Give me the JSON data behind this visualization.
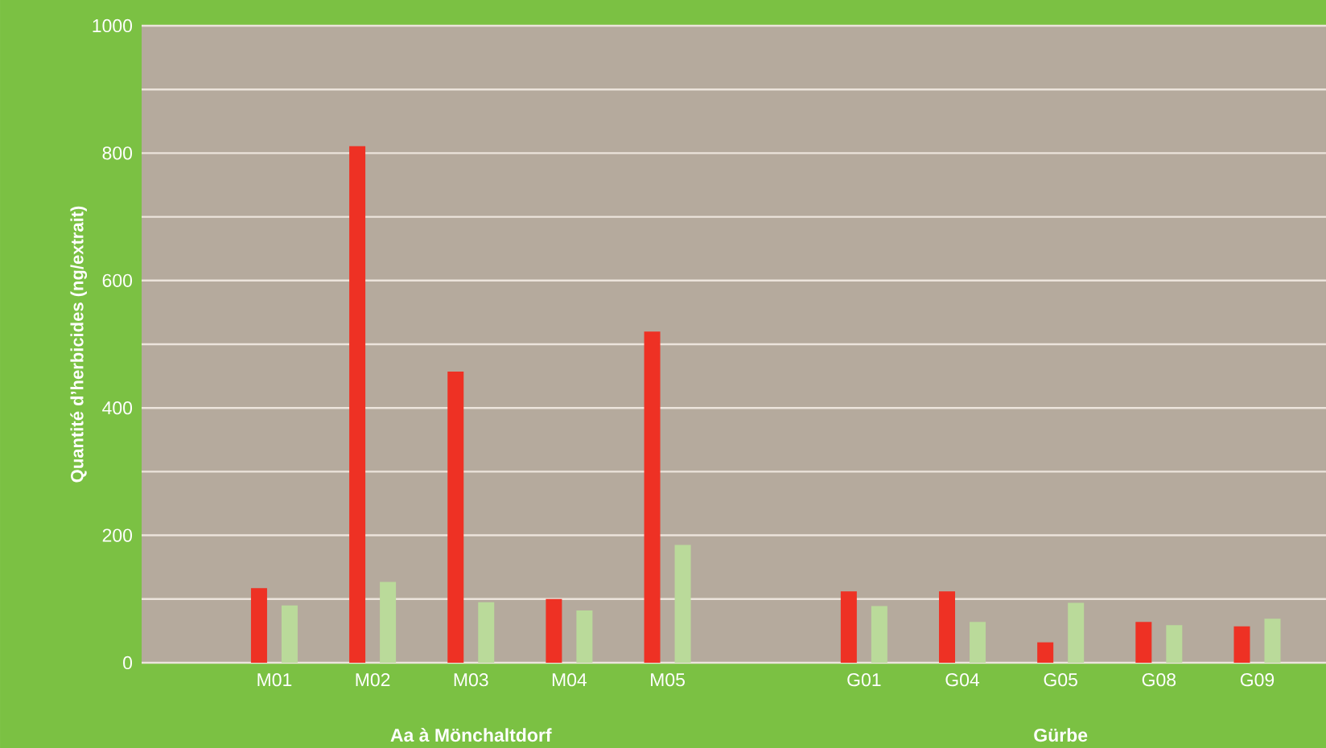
{
  "chart_data": {
    "type": "bar",
    "ylabel": "Quantité d’herbicides (ng/extrait)",
    "categories": [
      "M01",
      "M02",
      "M03",
      "M04",
      "M05",
      null,
      "G01",
      "G04",
      "G05",
      "G08",
      "G09"
    ],
    "series": [
      {
        "color": "#ee3124",
        "values": [
          117,
          811,
          457,
          100,
          520,
          null,
          112,
          112,
          32,
          64,
          57
        ]
      },
      {
        "color": "#bada9a",
        "values": [
          90,
          127,
          95,
          82,
          185,
          null,
          89,
          64,
          94,
          59,
          69
        ]
      }
    ],
    "annotations": [
      "Aa à Mönchaltdorf",
      "Gürbe"
    ],
    "ylim": [
      0,
      1000
    ],
    "yticks": [
      0,
      {
        "value": 100,
        "label": null
      },
      200,
      {
        "value": 300,
        "label": null
      },
      400,
      {
        "value": 500,
        "label": null
      },
      600,
      {
        "value": 700,
        "label": null
      },
      800,
      {
        "value": 900,
        "label": null
      },
      1000
    ],
    "grid": "y"
  }
}
